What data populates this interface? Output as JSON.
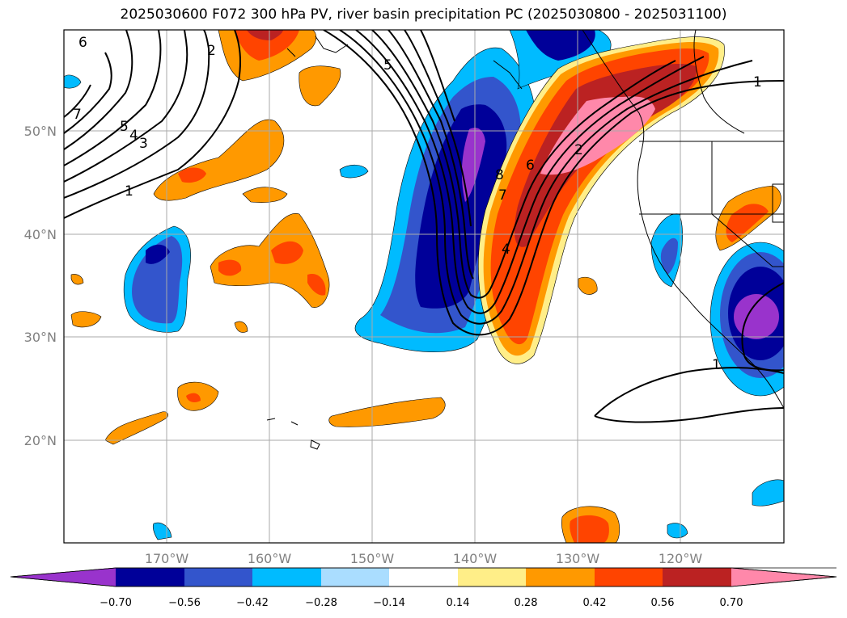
{
  "title": "2025030600 F072 300 hPa PV, river basin precipitation PC (2025030800 - 2025031100)",
  "axes": {
    "lon_labels": [
      "170°W",
      "160°W",
      "150°W",
      "140°W",
      "130°W",
      "120°W"
    ],
    "lat_labels": [
      "50°N",
      "40°N",
      "30°N",
      "20°N"
    ]
  },
  "colorbar": {
    "ticks": [
      "−0.70",
      "−0.56",
      "−0.42",
      "−0.28",
      "−0.14",
      "0.14",
      "0.28",
      "0.42",
      "0.56",
      "0.70"
    ],
    "colors": [
      "#9933cc",
      "#000099",
      "#3355cc",
      "#00bbff",
      "#aaddff",
      "#ffffff",
      "#ffee88",
      "#ff9900",
      "#ff4400",
      "#bb2222",
      "#ff88aa"
    ]
  },
  "contour_labels": [
    "6",
    "7",
    "5",
    "4",
    "3",
    "1",
    "2",
    "5",
    "8",
    "6",
    "7",
    "4",
    "2",
    "1",
    "1"
  ]
}
